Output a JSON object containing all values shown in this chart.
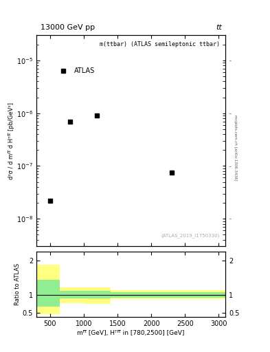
{
  "title_left": "13000 GeV pp",
  "title_right": "tt",
  "watermark": "(ATLAS_2019_I1750330)",
  "right_label": "mcplots.cern.ch [arXiv:1306.3436]",
  "legend_label": "m(ttbar) (ATLAS semileptonic ttbar)",
  "atlas_label": "ATLAS",
  "xlim": [
    300,
    3100
  ],
  "ylim_main_log": [
    3e-09,
    3e-05
  ],
  "ylim_ratio": [
    0.38,
    2.25
  ],
  "yticks_ratio": [
    0.5,
    1.0,
    2.0
  ],
  "xticks": [
    500,
    1000,
    1500,
    2000,
    2500,
    3000
  ],
  "data_x": [
    500,
    800,
    1200,
    2300
  ],
  "data_y": [
    2.2e-08,
    7e-07,
    9e-07,
    7.5e-08
  ],
  "ratio_bin_edges": [
    300,
    650,
    1000,
    1400,
    3100
  ],
  "ratio_green_lo": [
    0.67,
    0.9,
    0.9,
    0.92
  ],
  "ratio_green_hi": [
    1.45,
    1.12,
    1.12,
    1.08
  ],
  "ratio_yellow_lo": [
    0.45,
    0.78,
    0.75,
    0.88
  ],
  "ratio_yellow_hi": [
    1.88,
    1.22,
    1.22,
    1.15
  ],
  "bg_color": "#ffffff",
  "marker_color": "#000000",
  "green_color": "#90ee90",
  "yellow_color": "#ffff80"
}
